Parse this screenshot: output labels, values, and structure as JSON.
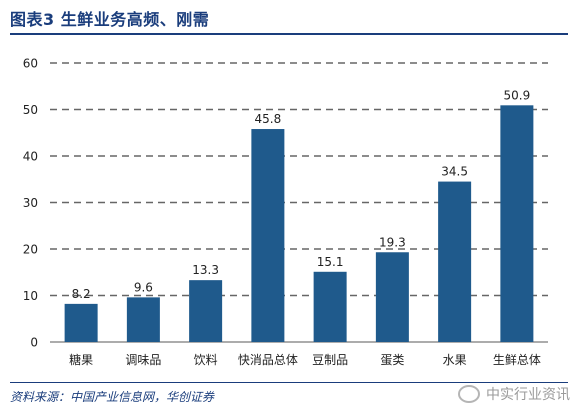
{
  "header": {
    "title": "图表3 生鲜业务高频、刚需"
  },
  "footer": {
    "source": "资料来源：中国产业信息网，华创证券",
    "watermark": "中实行业资讯"
  },
  "colors": {
    "bar": "#1f5a8c",
    "gridline": "#666666",
    "title": "#1a3d7c"
  },
  "chart_data": {
    "type": "bar",
    "title": "",
    "xlabel": "",
    "ylabel": "",
    "categories": [
      "糖果",
      "调味品",
      "饮料",
      "快消品总体",
      "豆制品",
      "蛋类",
      "水果",
      "生鲜总体"
    ],
    "values": [
      8.2,
      9.6,
      13.3,
      45.8,
      15.1,
      19.3,
      34.5,
      50.9
    ],
    "data_labels": [
      "8.2",
      "9.6",
      "13.3",
      "45.8",
      "15.1",
      "19.3",
      "34.5",
      "50.9"
    ],
    "ylim": [
      0,
      60
    ],
    "yticks": [
      0,
      10,
      20,
      30,
      40,
      50,
      60
    ],
    "grid": true,
    "legend": "none"
  }
}
